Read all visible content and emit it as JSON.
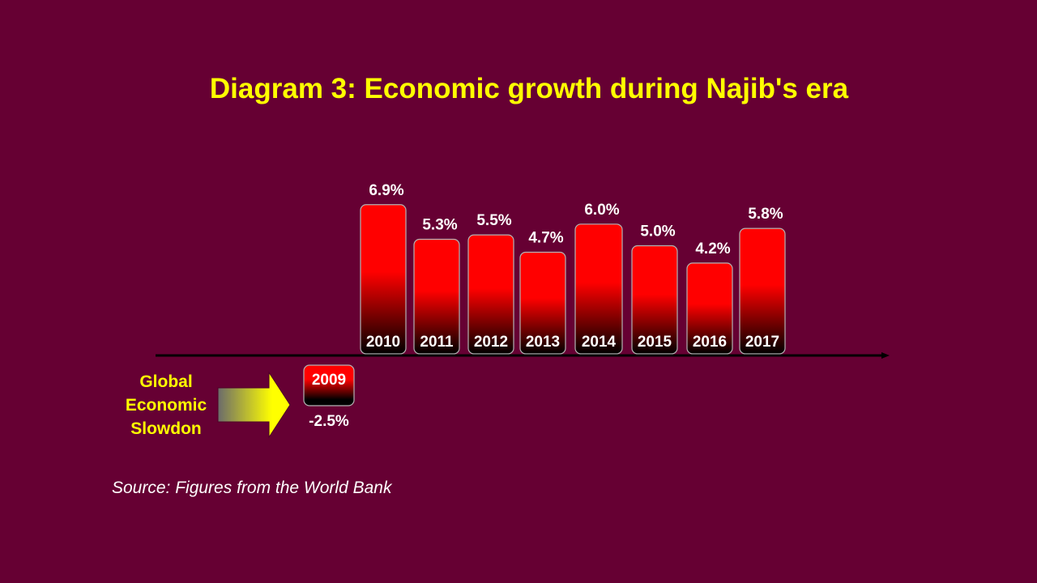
{
  "colors": {
    "background": "#660033",
    "title": "#ffff00",
    "bar_top": "#ff0000",
    "bar_bottom": "#000000",
    "bar_border": "#b3b3b3",
    "label": "#ffffff",
    "axis": "#000000",
    "callout": "#ffff00",
    "arrow_start": "#6b6b6b",
    "arrow_end": "#ffff00"
  },
  "chart_data": {
    "type": "bar",
    "title": "Diagram 3: Economic growth during Najib's era",
    "categories": [
      "2009",
      "2010",
      "2011",
      "2012",
      "2013",
      "2014",
      "2015",
      "2016",
      "2017"
    ],
    "values": [
      -2.5,
      6.9,
      5.3,
      5.5,
      4.7,
      6.0,
      5.0,
      4.2,
      5.8
    ],
    "value_labels": [
      "-2.5%",
      "6.9%",
      "5.3%",
      "5.5%",
      "4.7%",
      "6.0%",
      "5.0%",
      "4.2%",
      "5.8%"
    ],
    "xlabel": "",
    "ylabel": "",
    "ylim": [
      -2.5,
      7.5
    ],
    "grid": false,
    "legend": "none"
  },
  "callout": {
    "lines": [
      "Global",
      "Economic",
      "Slowdon"
    ],
    "icon": "right-arrow-icon"
  },
  "source": "Source: Figures from the World Bank"
}
